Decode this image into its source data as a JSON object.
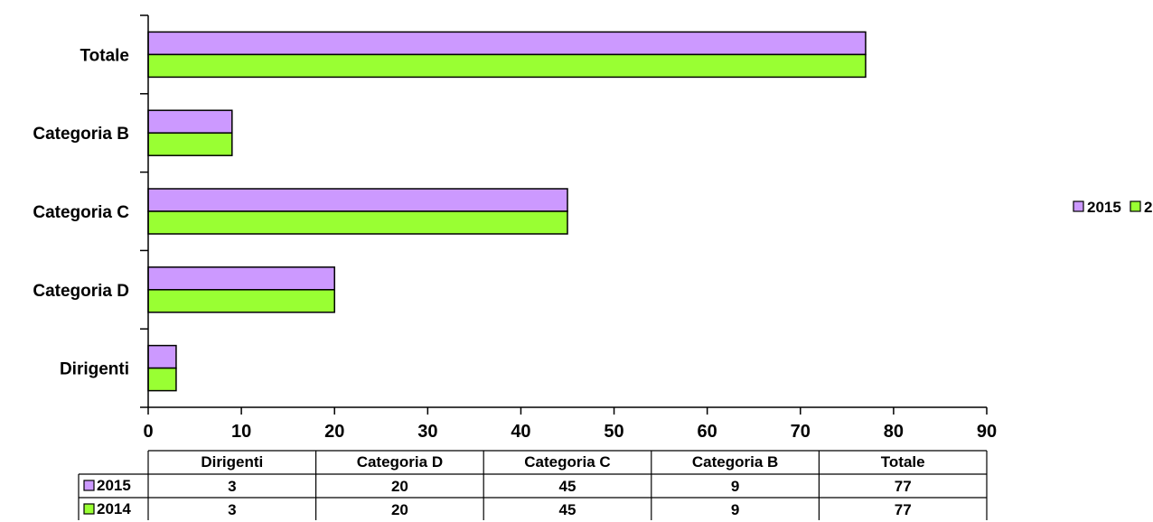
{
  "chart_data": {
    "type": "bar",
    "orientation": "horizontal",
    "categories": [
      "Dirigenti",
      "Categoria D",
      "Categoria C",
      "Categoria B",
      "Totale"
    ],
    "series": [
      {
        "name": "2015",
        "color": "#cc99ff",
        "values": [
          3,
          20,
          45,
          9,
          77
        ]
      },
      {
        "name": "2014",
        "color": "#99ff33",
        "values": [
          3,
          20,
          45,
          9,
          77
        ]
      }
    ],
    "xlim": [
      0,
      90
    ],
    "xticks": [
      0,
      10,
      20,
      30,
      40,
      50,
      60,
      70,
      80,
      90
    ],
    "grid": false,
    "legend_position": "right",
    "data_table": true
  }
}
